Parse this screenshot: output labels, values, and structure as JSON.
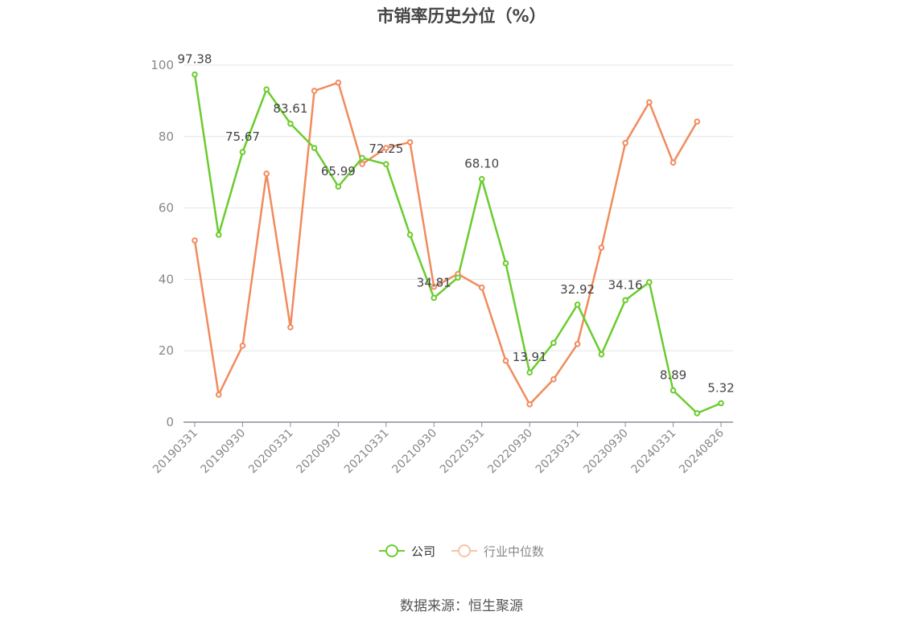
{
  "title": "市销率历史分位（%）",
  "source": "数据来源：恒生聚源",
  "colors": {
    "company": "#6acc2e",
    "industry": "#f18b5e",
    "grid": "#e6e6e6",
    "axis": "#8a8f99",
    "text": "#888888"
  },
  "chart_data": {
    "type": "line",
    "title": "市销率历史分位（%）",
    "ylim": [
      0,
      100
    ],
    "yticks": [
      0,
      20,
      40,
      60,
      80,
      100
    ],
    "grid": true,
    "legend_position": "bottom",
    "x": [
      "20190331",
      "20190630",
      "20190930",
      "20191231",
      "20200331",
      "20200630",
      "20200930",
      "20201231",
      "20210331",
      "20210630",
      "20210930",
      "20211231",
      "20220331",
      "20220630",
      "20220930",
      "20221231",
      "20230331",
      "20230630",
      "20230930",
      "20231231",
      "20240331",
      "20240630",
      "20240826"
    ],
    "xtick_labels": [
      "20190331",
      "20190930",
      "20200331",
      "20200930",
      "20210331",
      "20210930",
      "20220331",
      "20220930",
      "20230331",
      "20230930",
      "20240331",
      "20240826"
    ],
    "series": [
      {
        "name": "公司",
        "values": [
          97.38,
          52.5,
          75.67,
          93.2,
          83.61,
          76.8,
          65.99,
          74.0,
          72.25,
          52.5,
          34.81,
          40.5,
          68.1,
          44.5,
          13.91,
          22.2,
          32.92,
          19.0,
          34.16,
          39.2,
          8.89,
          2.5,
          5.32
        ],
        "data_labels": {
          "0": "97.38",
          "2": "75.67",
          "4": "83.61",
          "6": "65.99",
          "8": "72.25",
          "10": "34.81",
          "12": "68.10",
          "14": "13.91",
          "16": "32.92",
          "18": "34.16",
          "20": "8.89",
          "22": "5.32"
        }
      },
      {
        "name": "行业中位数",
        "values": [
          50.9,
          7.7,
          21.4,
          69.6,
          26.6,
          92.8,
          95.1,
          72.3,
          76.8,
          78.4,
          37.9,
          41.5,
          37.7,
          17.2,
          5.0,
          12.0,
          21.9,
          48.9,
          78.2,
          89.6,
          72.7,
          84.2,
          null
        ]
      }
    ]
  }
}
